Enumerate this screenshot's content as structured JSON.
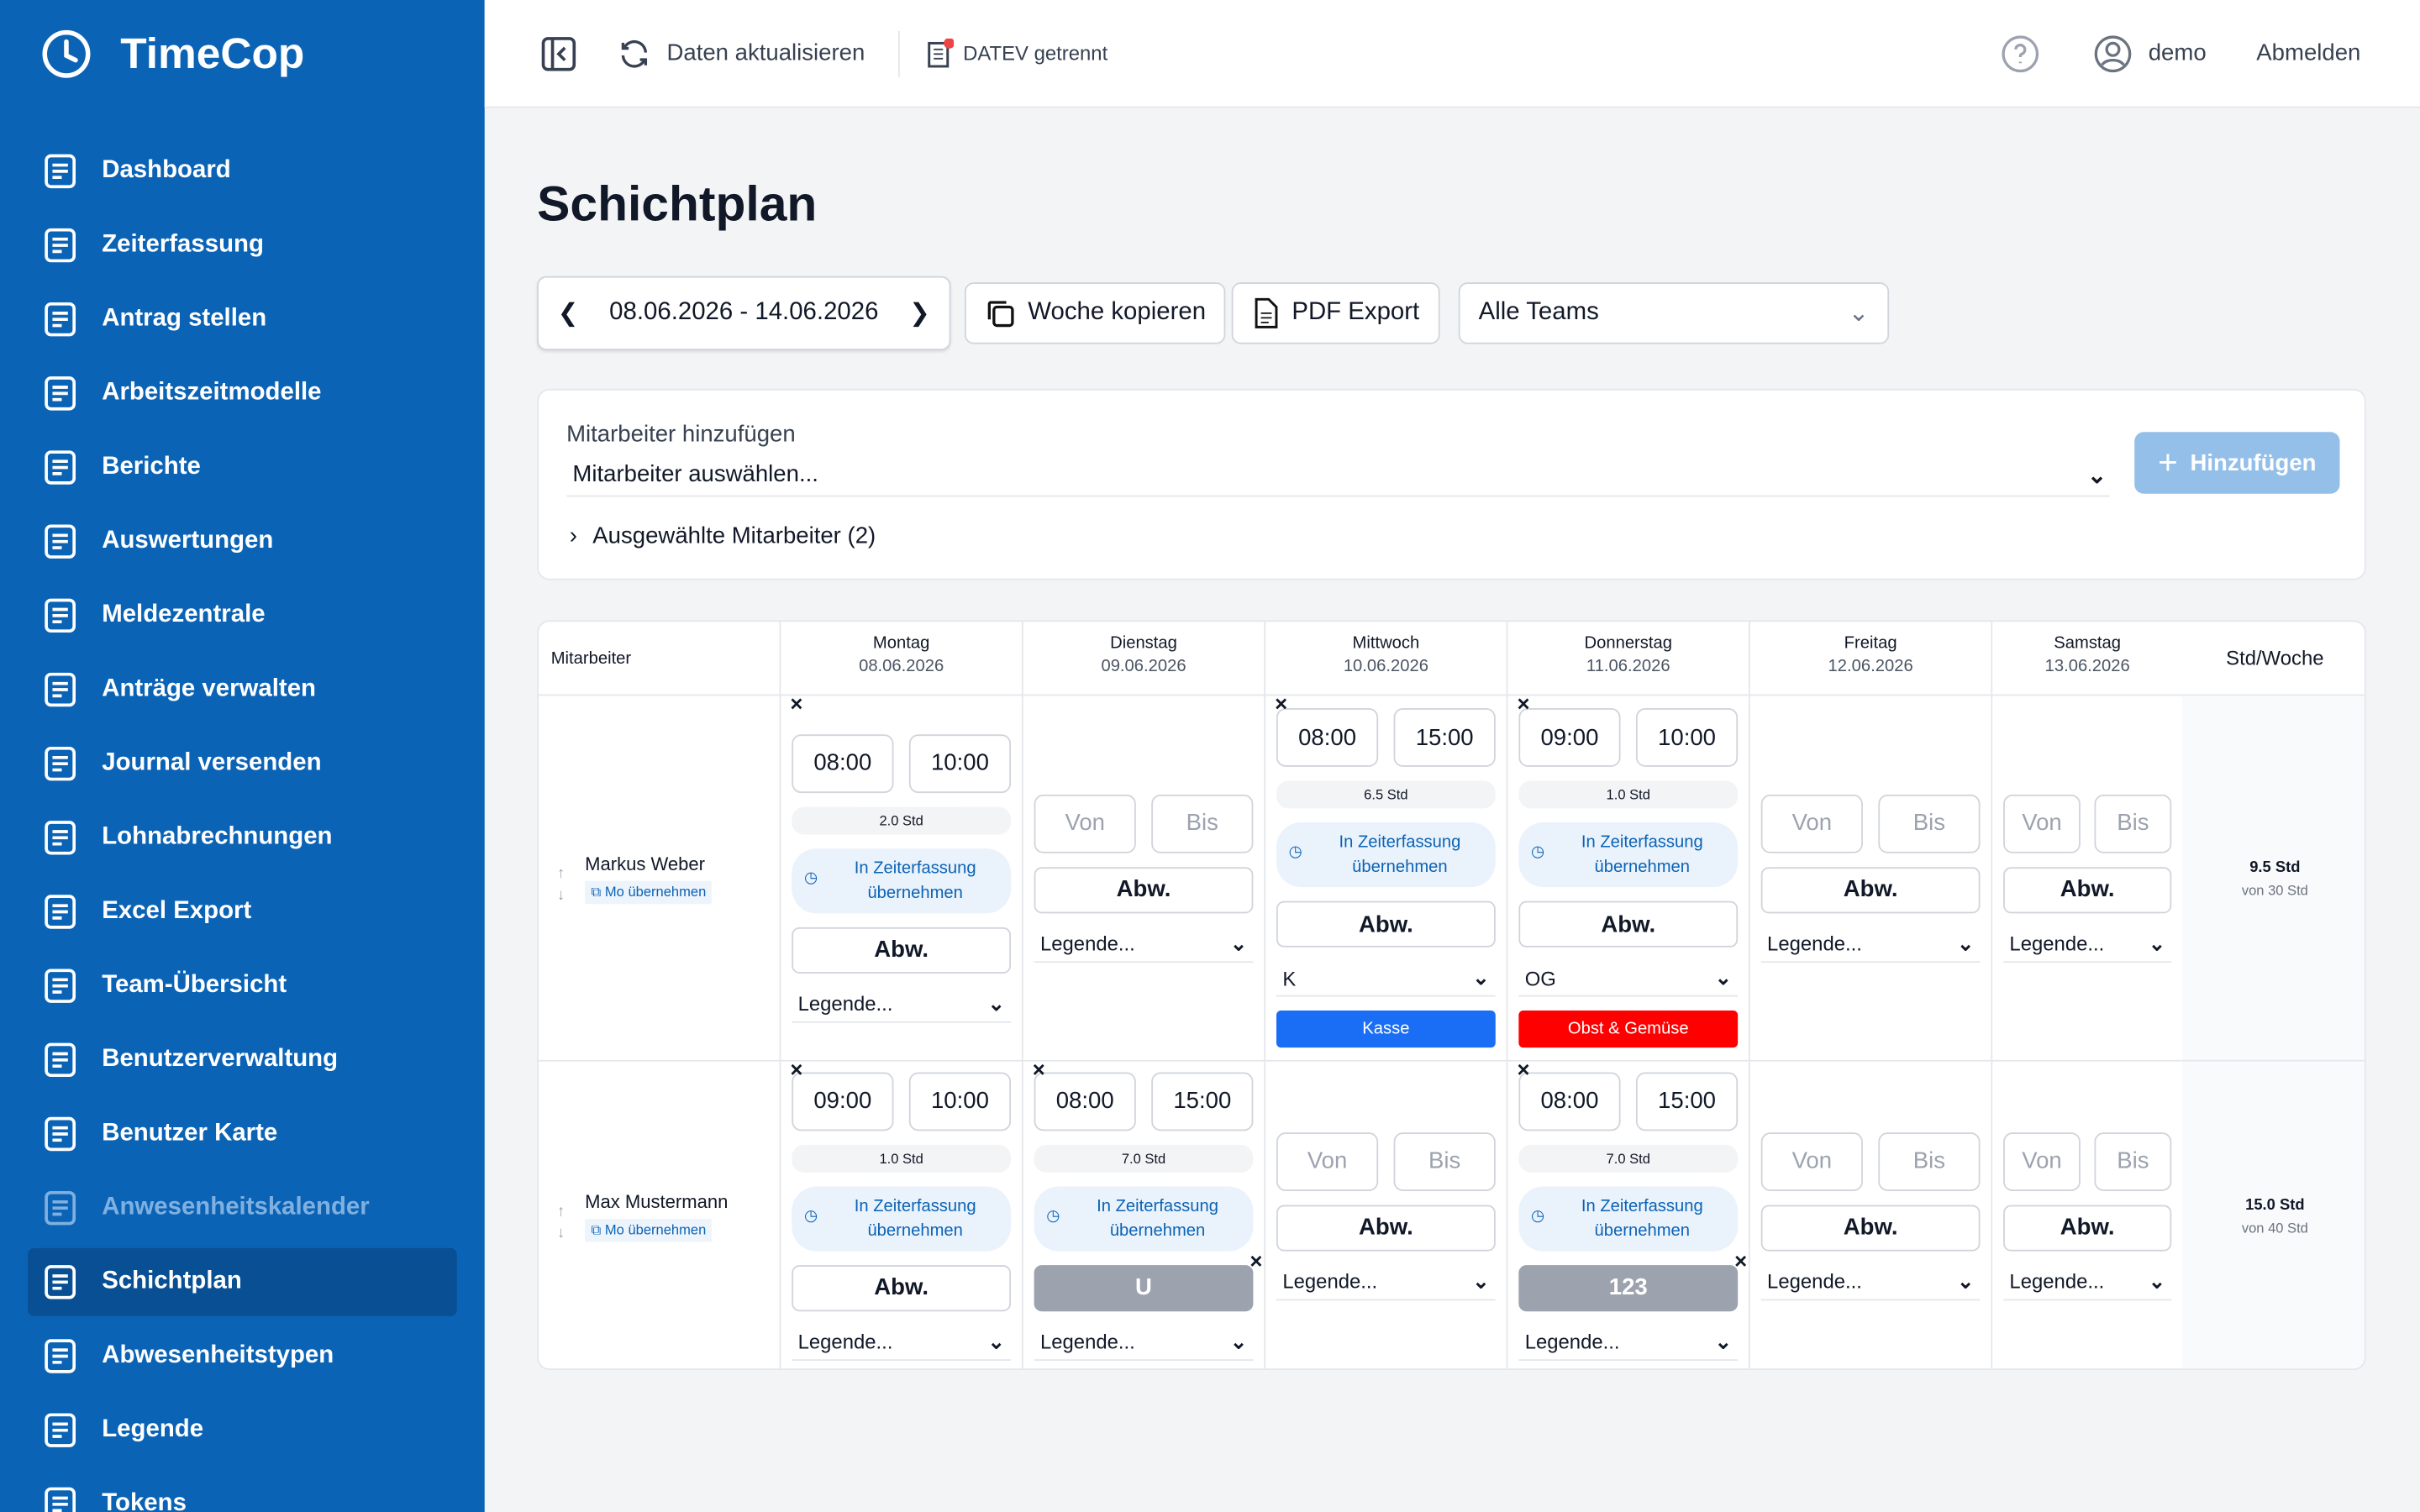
{
  "app": {
    "name": "TimeCop"
  },
  "nav": {
    "items": [
      {
        "label": "Dashboard"
      },
      {
        "label": "Zeiterfassung"
      },
      {
        "label": "Antrag stellen"
      },
      {
        "label": "Arbeitszeitmodelle"
      },
      {
        "label": "Berichte"
      },
      {
        "label": "Auswertungen"
      },
      {
        "label": "Meldezentrale"
      },
      {
        "label": "Anträge verwalten"
      },
      {
        "label": "Journal versenden"
      },
      {
        "label": "Lohnabrechnungen"
      },
      {
        "label": "Excel Export"
      },
      {
        "label": "Team-Übersicht"
      },
      {
        "label": "Benutzerverwaltung"
      },
      {
        "label": "Benutzer Karte"
      },
      {
        "label": "Anwesenheitskalender",
        "state": "disabled"
      },
      {
        "label": "Schichtplan",
        "state": "active"
      },
      {
        "label": "Abwesenheitstypen"
      },
      {
        "label": "Legende"
      },
      {
        "label": "Tokens"
      }
    ]
  },
  "toolbar": {
    "refresh": "Daten aktualisieren",
    "datev": "DATEV getrennt",
    "user": "demo",
    "logout": "Abmelden"
  },
  "page": {
    "title": "Schichtplan",
    "week": "08.06.2026 - 14.06.2026",
    "copy_week": "Woche kopieren",
    "pdf": "PDF Export",
    "team": "Alle Teams"
  },
  "add_panel": {
    "label": "Mitarbeiter hinzufügen",
    "placeholder": "Mitarbeiter auswählen...",
    "button": "Hinzufügen",
    "selected": "Ausgewählte Mitarbeiter (2)"
  },
  "table": {
    "employee_header": "Mitarbeiter",
    "total_header": "Std/Woche",
    "days": [
      {
        "name": "Montag",
        "date": "08.06.2026"
      },
      {
        "name": "Dienstag",
        "date": "09.06.2026"
      },
      {
        "name": "Mittwoch",
        "date": "10.06.2026"
      },
      {
        "name": "Donnerstag",
        "date": "11.06.2026"
      },
      {
        "name": "Freitag",
        "date": "12.06.2026"
      },
      {
        "name": "Samstag",
        "date": "13.06.2026"
      }
    ],
    "labels": {
      "from": "Von",
      "to": "Bis",
      "absence": "Abw.",
      "legend": "Legende...",
      "transfer": "In Zeiterfassung übernehmen",
      "copy_monday": "Mo übernehmen"
    },
    "rows": [
      {
        "name": "Markus Weber",
        "total": "9.5 Std",
        "target": "von 30 Std",
        "cells": [
          {
            "start": "08:00",
            "end": "10:00",
            "hours": "2.0 Std"
          },
          {},
          {
            "start": "08:00",
            "end": "15:00",
            "hours": "6.5 Std",
            "legend": "K",
            "tag": "Kasse",
            "tag_color": "#1a6ef5"
          },
          {
            "start": "09:00",
            "end": "10:00",
            "hours": "1.0 Std",
            "legend": "OG",
            "tag": "Obst & Gemüse",
            "tag_color": "#ff0000"
          },
          {},
          {}
        ]
      },
      {
        "name": "Max Mustermann",
        "total": "15.0 Std",
        "target": "von 40 Std",
        "cells": [
          {
            "start": "09:00",
            "end": "10:00",
            "hours": "1.0 Std"
          },
          {
            "start": "08:00",
            "end": "15:00",
            "hours": "7.0 Std",
            "absence": "U"
          },
          {},
          {
            "start": "08:00",
            "end": "15:00",
            "hours": "7.0 Std",
            "absence": "123"
          },
          {},
          {}
        ]
      }
    ]
  }
}
